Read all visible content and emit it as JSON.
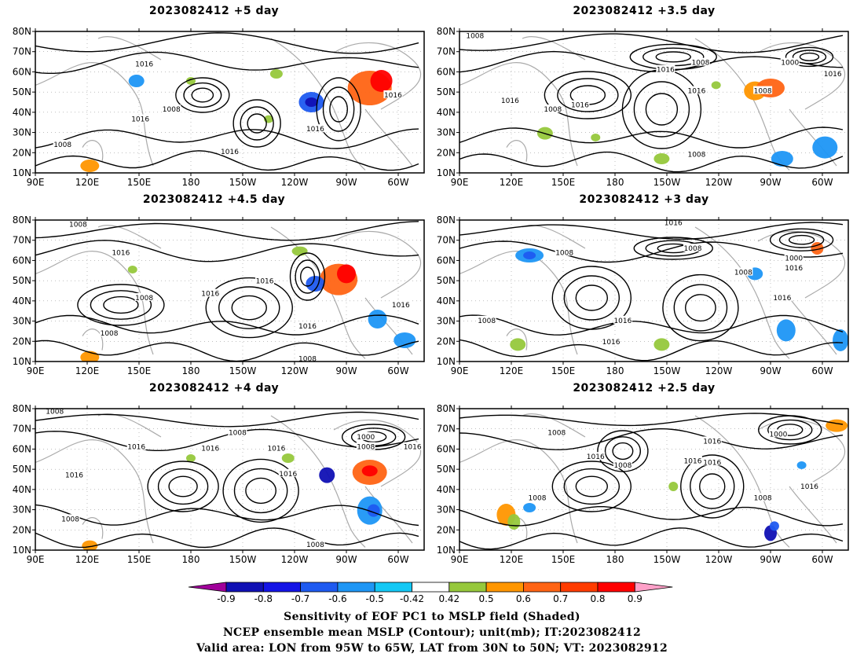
{
  "panels": [
    {
      "title": "2023082412 +5 day"
    },
    {
      "title": "2023082412 +3.5 day"
    },
    {
      "title": "2023082412 +4.5 day"
    },
    {
      "title": "2023082412 +3 day"
    },
    {
      "title": "2023082412 +4 day"
    },
    {
      "title": "2023082412 +2.5 day"
    }
  ],
  "axes": {
    "lon_ticks": [
      "90E",
      "120E",
      "150E",
      "180",
      "150W",
      "120W",
      "90W",
      "60W"
    ],
    "lat_ticks": [
      "80N",
      "70N",
      "60N",
      "50N",
      "40N",
      "30N",
      "20N",
      "10N"
    ]
  },
  "contour_labels": [
    "1016",
    "1008",
    "1000"
  ],
  "colorbar": {
    "levels": [
      "-0.9",
      "-0.8",
      "-0.7",
      "-0.6",
      "-0.5",
      "-0.42",
      "0.42",
      "0.5",
      "0.6",
      "0.7",
      "0.8",
      "0.9"
    ],
    "colors": [
      "#a0009a",
      "#1010b4",
      "#1414e6",
      "#1e5af0",
      "#1e96f5",
      "#14c8f5",
      "#ffffff",
      "#96c83c",
      "#ff9600",
      "#ff6414",
      "#ff3c00",
      "#ff0000",
      "#ffa0c8"
    ]
  },
  "caption": {
    "line1": "Sensitivity of EOF PC1 to MSLP field (Shaded)",
    "line2": "NCEP ensemble mean MSLP (Contour); unit(mb); IT:2023082412",
    "line3": "Valid area: LON from 95W to 65W, LAT from 30N to 50N; VT: 2023082912"
  }
}
